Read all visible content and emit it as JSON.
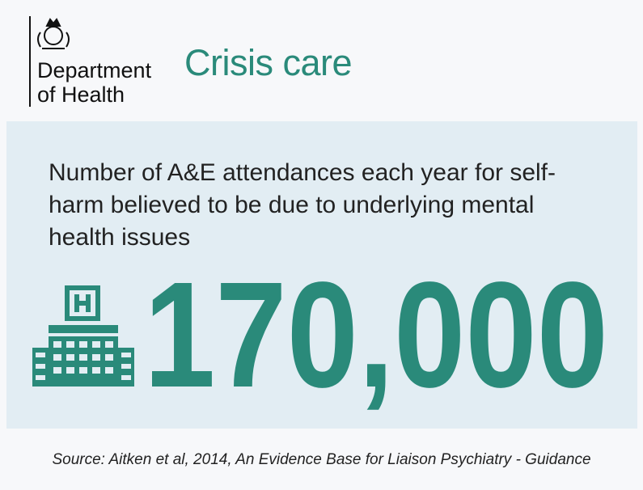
{
  "header": {
    "organization": [
      "Department",
      "of Health"
    ],
    "title": "Crisis care"
  },
  "stat": {
    "description": "Number of A&E attendances each year for self-harm believed to be due to underlying mental health issues",
    "value": "170,000"
  },
  "source": "Source: Aitken et al, 2014, An Evidence Base for Liaison Psychiatry - Guidance"
}
